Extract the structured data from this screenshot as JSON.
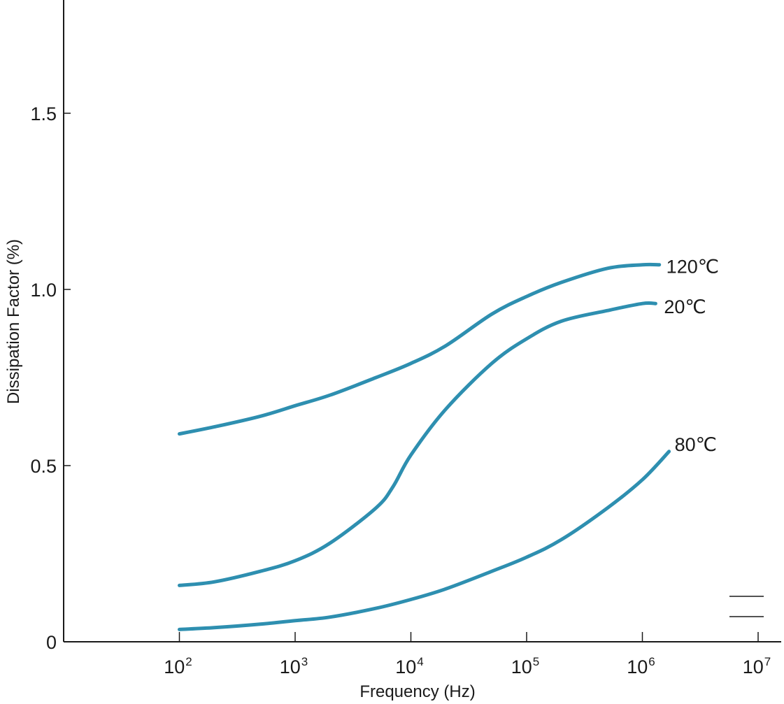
{
  "chart_data": {
    "type": "line",
    "xlabel": "Frequency (Hz)",
    "ylabel": "Dissipation Factor (%)",
    "xscale": "log",
    "x_ticks": [
      {
        "base": "10",
        "exp": "2"
      },
      {
        "base": "10",
        "exp": "3"
      },
      {
        "base": "10",
        "exp": "4"
      },
      {
        "base": "10",
        "exp": "5"
      },
      {
        "base": "10",
        "exp": "6"
      },
      {
        "base": "10",
        "exp": "7"
      }
    ],
    "y_ticks": [
      "0",
      "0.5",
      "1.0",
      "1.5"
    ],
    "ylim": [
      0,
      1.8
    ],
    "grid": false,
    "series_color": "#2e8fb0",
    "series": [
      {
        "name": "120℃",
        "x": [
          100,
          200,
          500,
          1000,
          2000,
          5000,
          10000,
          20000,
          50000,
          100000,
          200000,
          500000,
          1000000,
          1400000
        ],
        "values": [
          0.59,
          0.61,
          0.64,
          0.67,
          0.7,
          0.75,
          0.79,
          0.84,
          0.93,
          0.98,
          1.02,
          1.06,
          1.07,
          1.07
        ]
      },
      {
        "name": "20℃",
        "x": [
          100,
          200,
          500,
          1000,
          2000,
          5000,
          7000,
          10000,
          20000,
          50000,
          100000,
          200000,
          500000,
          1000000,
          1300000
        ],
        "values": [
          0.16,
          0.17,
          0.2,
          0.23,
          0.28,
          0.38,
          0.44,
          0.53,
          0.66,
          0.79,
          0.86,
          0.91,
          0.94,
          0.96,
          0.96
        ]
      },
      {
        "name": "80℃",
        "x": [
          100,
          200,
          500,
          1000,
          2000,
          5000,
          10000,
          20000,
          50000,
          100000,
          200000,
          500000,
          1000000,
          1700000
        ],
        "values": [
          0.035,
          0.04,
          0.05,
          0.06,
          0.07,
          0.095,
          0.12,
          0.15,
          0.2,
          0.24,
          0.29,
          0.38,
          0.46,
          0.54
        ]
      }
    ]
  }
}
